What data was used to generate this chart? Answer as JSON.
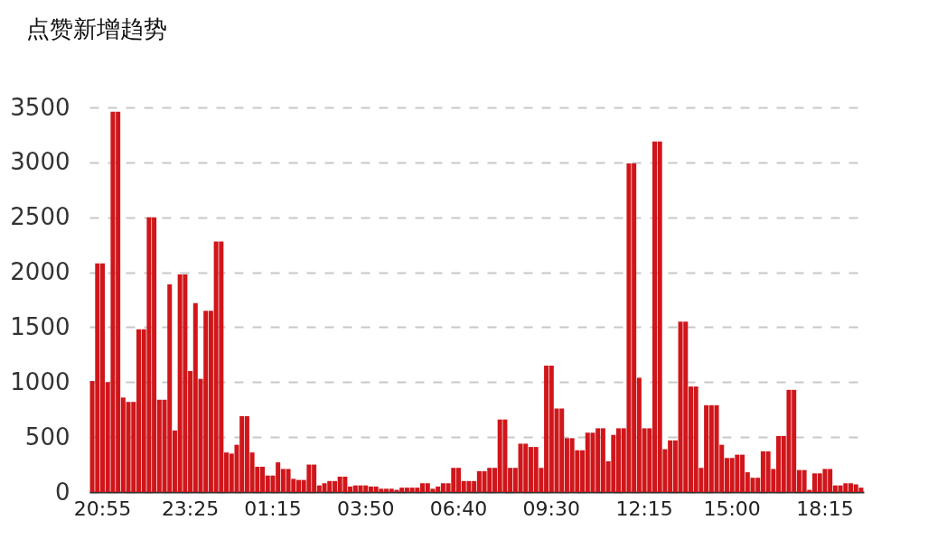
{
  "chart_data": {
    "type": "bar",
    "title": "点赞新增趋势",
    "categories": [
      null,
      null,
      "20:55",
      null,
      null,
      null,
      null,
      null,
      null,
      null,
      null,
      null,
      null,
      null,
      null,
      null,
      null,
      null,
      null,
      "23:25",
      null,
      null,
      null,
      null,
      null,
      null,
      null,
      null,
      null,
      null,
      null,
      null,
      null,
      null,
      null,
      "01:15",
      null,
      null,
      null,
      null,
      null,
      null,
      null,
      null,
      null,
      null,
      null,
      null,
      null,
      null,
      null,
      null,
      null,
      "03:50",
      null,
      null,
      null,
      null,
      null,
      null,
      null,
      null,
      null,
      null,
      null,
      null,
      null,
      null,
      null,
      null,
      null,
      "06:40",
      null,
      null,
      null,
      null,
      null,
      null,
      null,
      null,
      null,
      null,
      null,
      null,
      null,
      null,
      null,
      null,
      null,
      "09:30",
      null,
      null,
      null,
      null,
      null,
      null,
      null,
      null,
      null,
      null,
      null,
      null,
      null,
      null,
      null,
      null,
      null,
      "12:15",
      null,
      null,
      null,
      null,
      null,
      null,
      null,
      null,
      null,
      null,
      null,
      null,
      null,
      null,
      null,
      null,
      "15:00",
      null,
      null,
      null,
      null,
      null,
      null,
      null,
      null,
      null,
      null,
      null,
      null,
      null,
      null,
      null,
      null,
      null,
      "18:15",
      null,
      null,
      null,
      null,
      null,
      null,
      null
    ],
    "values": [
      1010,
      2080,
      2080,
      1000,
      3460,
      3460,
      860,
      820,
      820,
      1480,
      1480,
      2500,
      2500,
      840,
      840,
      1890,
      560,
      1980,
      1980,
      1100,
      1720,
      1030,
      1650,
      1650,
      2280,
      2280,
      360,
      350,
      430,
      690,
      690,
      360,
      230,
      230,
      150,
      150,
      270,
      210,
      210,
      120,
      110,
      110,
      250,
      250,
      60,
      80,
      100,
      100,
      140,
      140,
      50,
      60,
      60,
      60,
      50,
      50,
      30,
      30,
      30,
      20,
      40,
      40,
      40,
      40,
      80,
      80,
      30,
      50,
      80,
      80,
      220,
      220,
      100,
      100,
      100,
      190,
      190,
      220,
      220,
      660,
      660,
      220,
      220,
      440,
      440,
      410,
      410,
      220,
      1150,
      1150,
      760,
      760,
      490,
      490,
      380,
      380,
      540,
      540,
      580,
      580,
      280,
      520,
      580,
      580,
      2990,
      2990,
      1040,
      580,
      580,
      3190,
      3190,
      390,
      470,
      470,
      1550,
      1550,
      960,
      960,
      220,
      790,
      790,
      790,
      430,
      310,
      310,
      340,
      340,
      180,
      130,
      130,
      370,
      370,
      210,
      510,
      510,
      930,
      930,
      200,
      200,
      20,
      170,
      170,
      210,
      210,
      60,
      60,
      80,
      80,
      70,
      40
    ],
    "color": "#d0161a",
    "ylim": [
      0,
      3500
    ],
    "yticks": [
      0,
      500,
      1000,
      1500,
      2000,
      2500,
      3000,
      3500
    ],
    "grid": "y"
  }
}
